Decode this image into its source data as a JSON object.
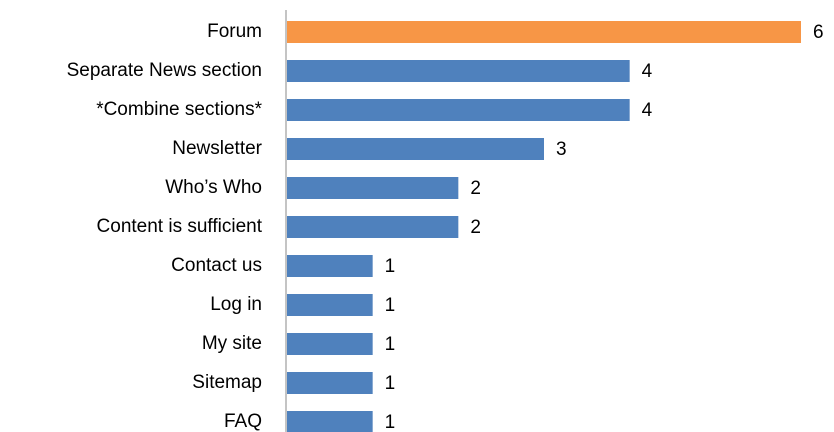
{
  "chart_data": {
    "type": "hbar",
    "categories": [
      "Forum",
      "Separate News section",
      "*Combine sections*",
      "Newsletter",
      "Who’s Who",
      "Content is sufficient",
      "Contact us",
      "Log in",
      "My site",
      "Sitemap",
      "FAQ"
    ],
    "values": [
      6,
      4,
      4,
      3,
      2,
      2,
      1,
      1,
      1,
      1,
      1
    ],
    "colors": [
      "#f79646",
      "#4f81bd",
      "#4f81bd",
      "#4f81bd",
      "#4f81bd",
      "#4f81bd",
      "#4f81bd",
      "#4f81bd",
      "#4f81bd",
      "#4f81bd",
      "#4f81bd"
    ],
    "xlim": [
      0,
      6
    ]
  }
}
